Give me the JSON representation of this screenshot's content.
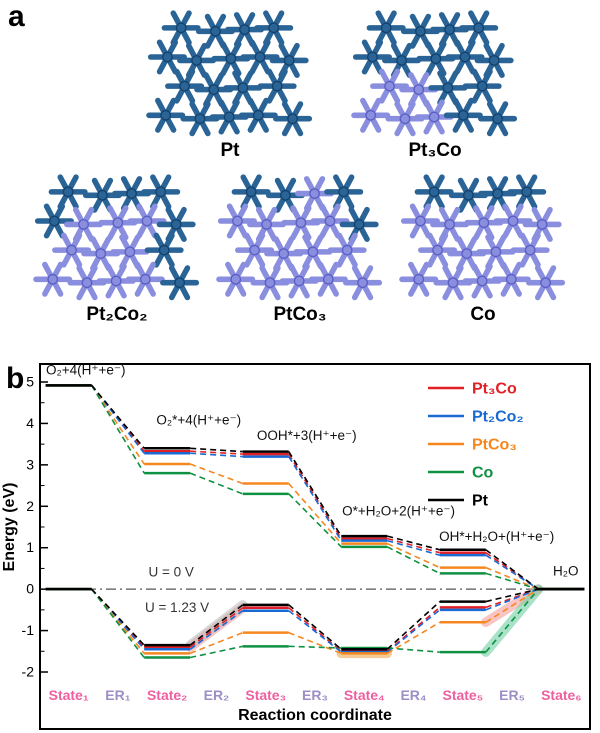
{
  "panels": {
    "a_label": "a",
    "b_label": "b"
  },
  "clusters": {
    "pt_color": "#2a6496",
    "pt_stroke": "#14416b",
    "co_color": "#8a8edf",
    "co_stroke": "#5a5ec2",
    "items": [
      {
        "label": "Pt",
        "grid": [
          [
            0,
            0,
            0,
            0
          ],
          [
            0,
            0,
            0,
            0,
            0
          ],
          [
            0,
            0,
            0,
            0
          ],
          [
            0,
            0,
            0,
            0,
            0
          ]
        ]
      },
      {
        "label": "Pt₃Co",
        "grid": [
          [
            0,
            0,
            0,
            0
          ],
          [
            0,
            0,
            0,
            0,
            0
          ],
          [
            1,
            1,
            0,
            0
          ],
          [
            1,
            1,
            1,
            0,
            0
          ]
        ]
      },
      {
        "label": "Pt₂Co₂",
        "grid": [
          [
            0,
            0,
            0,
            0
          ],
          [
            0,
            1,
            1,
            1,
            0
          ],
          [
            1,
            1,
            1,
            0
          ],
          [
            1,
            1,
            1,
            1,
            0
          ]
        ]
      },
      {
        "label": "PtCo₃",
        "grid": [
          [
            0,
            0,
            1,
            0
          ],
          [
            1,
            1,
            1,
            1,
            0
          ],
          [
            1,
            1,
            1,
            1
          ],
          [
            1,
            1,
            1,
            1,
            1
          ]
        ]
      },
      {
        "label": "Co",
        "grid": [
          [
            0,
            0,
            0,
            0
          ],
          [
            1,
            1,
            1,
            1,
            1
          ],
          [
            1,
            1,
            1,
            1
          ],
          [
            1,
            1,
            1,
            1,
            1
          ]
        ]
      }
    ]
  },
  "chart_data": {
    "type": "line",
    "title": "",
    "xlabel": "Reaction coordinate",
    "ylabel": "Energy (eV)",
    "ylim": [
      -2,
      5
    ],
    "y_ticks": [
      -2,
      -1,
      0,
      1,
      2,
      3,
      4,
      5
    ],
    "x_ticks": [
      "State₁",
      "ER₁",
      "State₂",
      "ER₂",
      "State₃",
      "ER₃",
      "State₄",
      "ER₄",
      "State₅",
      "ER₅",
      "State₆"
    ],
    "tick_colors": {
      "state": "#ee5fa0",
      "er": "#9d8fc5"
    },
    "zero_line": {
      "ev": 0,
      "style": "dash-dot"
    },
    "legend": {
      "position": "top-right"
    },
    "series": [
      {
        "name": "Pt₃Co",
        "color": "#e31f26",
        "u0": [
          4.92,
          3.33,
          3.26,
          1.22,
          0.88,
          0
        ],
        "u123": [
          0,
          -1.4,
          -0.45,
          -1.5,
          -0.44,
          0
        ]
      },
      {
        "name": "Pt₂Co₂",
        "color": "#1a6ad4",
        "u0": [
          4.92,
          3.28,
          3.2,
          1.17,
          0.82,
          0
        ],
        "u123": [
          0,
          -1.45,
          -0.52,
          -1.52,
          -0.5,
          0
        ]
      },
      {
        "name": "PtCo₃",
        "color": "#f5871f",
        "u0": [
          4.92,
          3.02,
          2.55,
          1.1,
          0.52,
          0
        ],
        "u123": [
          0,
          -1.55,
          -1.05,
          -1.55,
          -0.8,
          0
        ]
      },
      {
        "name": "Co",
        "color": "#0f9142",
        "u0": [
          4.92,
          2.8,
          2.3,
          1.02,
          0.38,
          0
        ],
        "u123": [
          0,
          -1.65,
          -1.38,
          -1.42,
          -1.52,
          0
        ]
      },
      {
        "name": "Pt",
        "color": "#000000",
        "u0": [
          4.92,
          3.4,
          3.32,
          1.28,
          0.95,
          0
        ],
        "u123": [
          0,
          -1.35,
          -0.38,
          -1.45,
          -0.3,
          0
        ]
      }
    ],
    "annotations": [
      {
        "text": "O₂+4(H⁺+e⁻)",
        "xs": 0.04,
        "ev": 5.18
      },
      {
        "text": "O₂*+4(H⁺+e⁻)",
        "xs": 2.28,
        "ev": 3.97
      },
      {
        "text": "OOH*+3(H⁺+e⁻)",
        "xs": 4.32,
        "ev": 3.6
      },
      {
        "text": "O*+H₂O+2(H⁺+e⁻)",
        "xs": 6.05,
        "ev": 1.78
      },
      {
        "text": "OH*+H₂O+(H⁺+e⁻)",
        "xs": 8.02,
        "ev": 1.16
      },
      {
        "text": "H₂O",
        "xs": 10.33,
        "ev": 0.33
      },
      {
        "text": "U = 0 V",
        "xs": 2.12,
        "ev": 0.3,
        "color": "#333333"
      },
      {
        "text": "U = 1.23 V",
        "xs": 2.05,
        "ev": -0.55,
        "color": "#333333"
      }
    ],
    "highlights": [
      {
        "series": "Pt₃Co",
        "segment": "ER₂",
        "type": "connector",
        "index": 1,
        "color": "#f49d9d"
      },
      {
        "series": "Pt",
        "segment": "ER₂",
        "type": "connector",
        "index": 1,
        "color": "#bdbdbd"
      },
      {
        "series": "PtCo₃",
        "segment": "State₄",
        "type": "plateau",
        "index": 3,
        "color": "#f0a84e"
      },
      {
        "series": "PtCo₃",
        "segment": "ER₅",
        "type": "connector",
        "index": 4,
        "color": "#f49d9d"
      },
      {
        "series": "Co",
        "segment": "ER₅",
        "type": "connector",
        "index": 4,
        "color": "#72cfa6"
      }
    ]
  }
}
